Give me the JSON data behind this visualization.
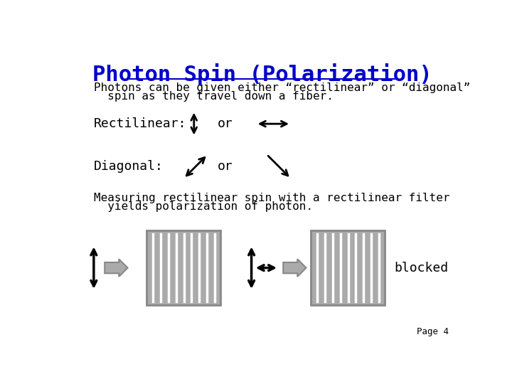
{
  "title": "Photon Spin (Polarization)",
  "title_color": "#0000CC",
  "title_fontsize": 22,
  "bg_color": "#FFFFFF",
  "text_color": "#000000",
  "body_font": "monospace",
  "para1_line1": "Photons can be given either “rectilinear” or “diagonal”",
  "para1_line2": "  spin as they travel down a fiber.",
  "rectilinear_label": "Rectilinear:",
  "diagonal_label": "Diagonal:",
  "or_label": "or",
  "para2_line1": "Measuring rectilinear spin with a rectilinear filter",
  "para2_line2": "  yields polarization of photon.",
  "blocked_label": "blocked",
  "page_label": "Page 4",
  "gray_fill": "#AAAAAA",
  "gray_border": "#888888",
  "arrow_color": "#000000"
}
